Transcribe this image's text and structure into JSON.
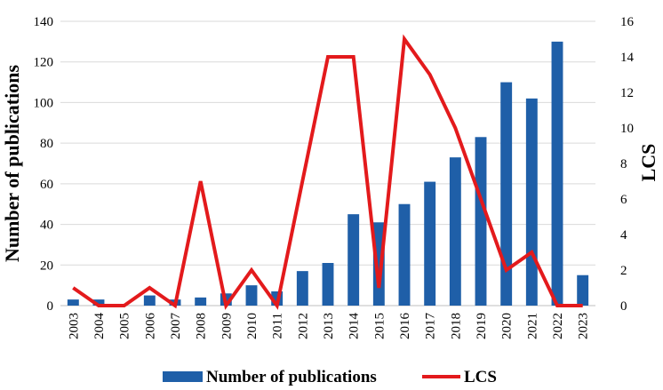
{
  "chart_data": {
    "type": "bar",
    "categories": [
      "2003",
      "2004",
      "2005",
      "2006",
      "2007",
      "2008",
      "2009",
      "2010",
      "2011",
      "2012",
      "2013",
      "2014",
      "2015",
      "2016",
      "2017",
      "2018",
      "2019",
      "2020",
      "2021",
      "2022",
      "2023"
    ],
    "series": [
      {
        "name": "Number of publications",
        "type": "bar",
        "axis": "left",
        "color": "#1f5fa8",
        "values": [
          3,
          3,
          0,
          5,
          3,
          4,
          6,
          10,
          7,
          17,
          21,
          45,
          41,
          50,
          61,
          73,
          83,
          110,
          102,
          130,
          15
        ]
      },
      {
        "name": "LCS",
        "type": "line",
        "axis": "right",
        "color": "#e31a1c",
        "values": [
          1,
          0,
          0,
          1,
          0,
          7,
          0,
          2,
          0,
          7,
          14,
          14,
          1,
          15,
          13,
          10,
          6,
          2,
          3,
          0,
          0
        ]
      }
    ],
    "ylabel": "Number of publications",
    "ylabel_right": "LCS",
    "ylim": [
      0,
      140
    ],
    "ylim_right": [
      0,
      16
    ],
    "yticks": [
      "0",
      "20",
      "40",
      "60",
      "80",
      "100",
      "120",
      "140"
    ],
    "yticks_right": [
      "0",
      "2",
      "4",
      "6",
      "8",
      "10",
      "12",
      "14",
      "16"
    ],
    "grid": true,
    "legend_position": "bottom"
  }
}
